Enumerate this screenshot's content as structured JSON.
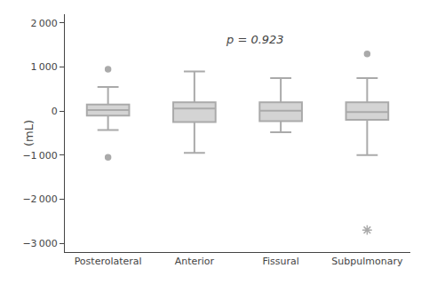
{
  "chart_data": {
    "type": "box",
    "categories": [
      "Posterolateral",
      "Anterior",
      "Fissural",
      "Subpulmonary"
    ],
    "ylabel": "(mL)",
    "annotation": "p = 0.923",
    "color": "#aaaaaa",
    "grid": false,
    "ylim": [
      -3200,
      2200
    ],
    "yticks": [
      {
        "value": -3000,
        "label": "−3 000"
      },
      {
        "value": -2000,
        "label": "−2 000"
      },
      {
        "value": -1000,
        "label": "−1 000"
      },
      0,
      {
        "value": 1000,
        "label": "1 000"
      },
      {
        "value": 2000,
        "label": "2 000"
      }
    ],
    "boxes": [
      {
        "q1": -100,
        "median": 25,
        "q3": 150,
        "whislo": -430,
        "whishi": 550,
        "fliers": [
          {
            "value": 950,
            "marker": "circle"
          },
          {
            "value": -1050,
            "marker": "circle"
          }
        ]
      },
      {
        "q1": -250,
        "median": 60,
        "q3": 200,
        "whislo": -950,
        "whishi": 900,
        "fliers": []
      },
      {
        "q1": -230,
        "median": 10,
        "q3": 200,
        "whislo": -480,
        "whishi": 750,
        "fliers": []
      },
      {
        "q1": -200,
        "median": -20,
        "q3": 200,
        "whislo": -1000,
        "whishi": 750,
        "fliers": [
          {
            "value": 1300,
            "marker": "circle"
          },
          {
            "value": -2700,
            "marker": "star"
          }
        ]
      }
    ]
  }
}
